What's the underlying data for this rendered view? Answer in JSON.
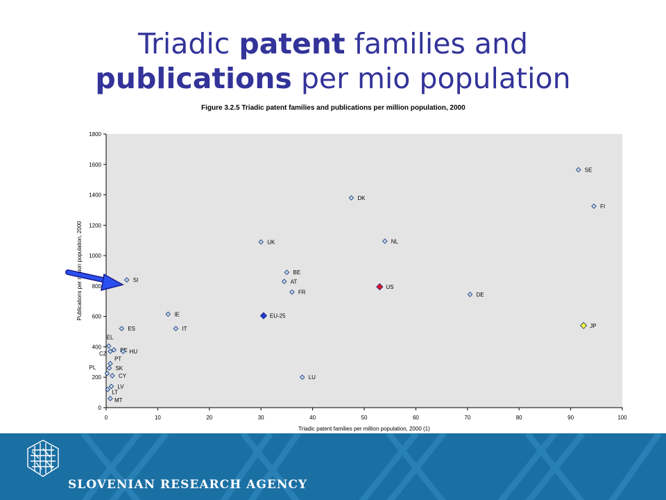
{
  "slide": {
    "title_part1": "Triadic ",
    "title_bold1": "patent",
    "title_part2": " families and",
    "title_bold2": "publications",
    "title_part3": " per mio population"
  },
  "footer": {
    "agency": "SLOVENIAN RESEARCH AGENCY",
    "logo_icon": "slovenian-research-agency-logo-icon",
    "color": "#1a6fa3"
  },
  "chart_data": {
    "type": "scatter",
    "title": "Figure 3.2.5 Triadic patent families and publications per million population, 2000",
    "xlabel": "Triadic patent families per million population, 2000 (1)",
    "ylabel": "Publications per million population, 2000",
    "xlim": [
      0,
      100
    ],
    "ylim": [
      0,
      1800
    ],
    "xticks": [
      0,
      10,
      20,
      30,
      40,
      50,
      60,
      70,
      80,
      90,
      100
    ],
    "yticks": [
      0,
      200,
      400,
      600,
      800,
      1000,
      1200,
      1400,
      1600,
      1800
    ],
    "grid": false,
    "plot_background": "#e4e4e4",
    "marker_color": "#c6d9f1",
    "highlight_colors": {
      "EU-25": "#1f3fcf",
      "US": "#e8151b",
      "JP": "#ffff33"
    },
    "points": [
      {
        "label": "SE",
        "x": 91.5,
        "y": 1565
      },
      {
        "label": "FI",
        "x": 94.5,
        "y": 1325
      },
      {
        "label": "DK",
        "x": 47.5,
        "y": 1380
      },
      {
        "label": "UK",
        "x": 30,
        "y": 1090
      },
      {
        "label": "NL",
        "x": 54,
        "y": 1095
      },
      {
        "label": "BE",
        "x": 35,
        "y": 890
      },
      {
        "label": "AT",
        "x": 34.5,
        "y": 830
      },
      {
        "label": "US",
        "x": 53,
        "y": 795
      },
      {
        "label": "FR",
        "x": 36,
        "y": 760
      },
      {
        "label": "DE",
        "x": 70.5,
        "y": 745
      },
      {
        "label": "SI",
        "x": 4,
        "y": 840
      },
      {
        "label": "IE",
        "x": 12,
        "y": 615
      },
      {
        "label": "EU-25",
        "x": 30.5,
        "y": 605
      },
      {
        "label": "IT",
        "x": 13.5,
        "y": 520
      },
      {
        "label": "ES",
        "x": 3,
        "y": 520
      },
      {
        "label": "JP",
        "x": 92.5,
        "y": 540
      },
      {
        "label": "EL",
        "x": 0.5,
        "y": 405
      },
      {
        "label": "EE",
        "x": 1.5,
        "y": 380
      },
      {
        "label": "CZ",
        "x": 0.8,
        "y": 370
      },
      {
        "label": "HU",
        "x": 3.3,
        "y": 370
      },
      {
        "label": "PT",
        "x": 0.8,
        "y": 290
      },
      {
        "label": "SK",
        "x": 0.6,
        "y": 260
      },
      {
        "label": "PL",
        "x": 0.2,
        "y": 225
      },
      {
        "label": "CY",
        "x": 1.2,
        "y": 210
      },
      {
        "label": "LV",
        "x": 1.0,
        "y": 140
      },
      {
        "label": "LT",
        "x": 0.3,
        "y": 120
      },
      {
        "label": "MT",
        "x": 0.8,
        "y": 60
      },
      {
        "label": "LU",
        "x": 38,
        "y": 200
      }
    ]
  }
}
